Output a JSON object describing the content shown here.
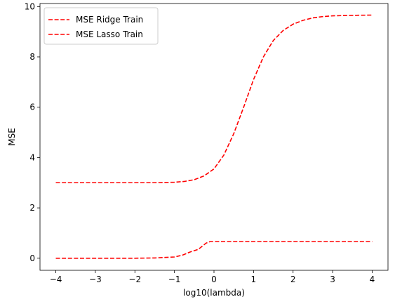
{
  "chart_data": {
    "type": "line",
    "title": "",
    "xlabel": "log10(lambda)",
    "ylabel": "MSE",
    "xlim": [
      -4.4,
      4.4
    ],
    "ylim": [
      -0.48,
      10.12
    ],
    "xticks": [
      -4,
      -3,
      -2,
      -1,
      0,
      1,
      2,
      3,
      4
    ],
    "yticks": [
      0,
      2,
      4,
      6,
      8,
      10
    ],
    "grid": false,
    "legend_position": "top-left",
    "series": [
      {
        "name": "MSE Ridge Train",
        "color": "#ff0000",
        "line_style": "dashed",
        "x": [
          -4,
          -3,
          -2,
          -1.5,
          -1,
          -0.75,
          -0.5,
          -0.25,
          0,
          0.25,
          0.5,
          0.75,
          1,
          1.25,
          1.5,
          1.75,
          2,
          2.25,
          2.5,
          2.75,
          3,
          3.5,
          4
        ],
        "y": [
          3.0,
          3.0,
          3.0,
          3.0,
          3.02,
          3.05,
          3.12,
          3.27,
          3.55,
          4.1,
          4.95,
          6.0,
          7.1,
          8.0,
          8.65,
          9.05,
          9.3,
          9.45,
          9.55,
          9.6,
          9.63,
          9.65,
          9.66
        ]
      },
      {
        "name": "MSE Lasso Train",
        "color": "#ff0000",
        "line_style": "dashed",
        "x": [
          -4,
          -3,
          -2,
          -1.5,
          -1,
          -0.8,
          -0.6,
          -0.4,
          -0.2,
          -0.1,
          0,
          1,
          2,
          3,
          4
        ],
        "y": [
          0.0,
          0.0,
          0.0,
          0.01,
          0.05,
          0.12,
          0.25,
          0.35,
          0.6,
          0.66,
          0.66,
          0.66,
          0.66,
          0.66,
          0.66
        ]
      }
    ]
  }
}
